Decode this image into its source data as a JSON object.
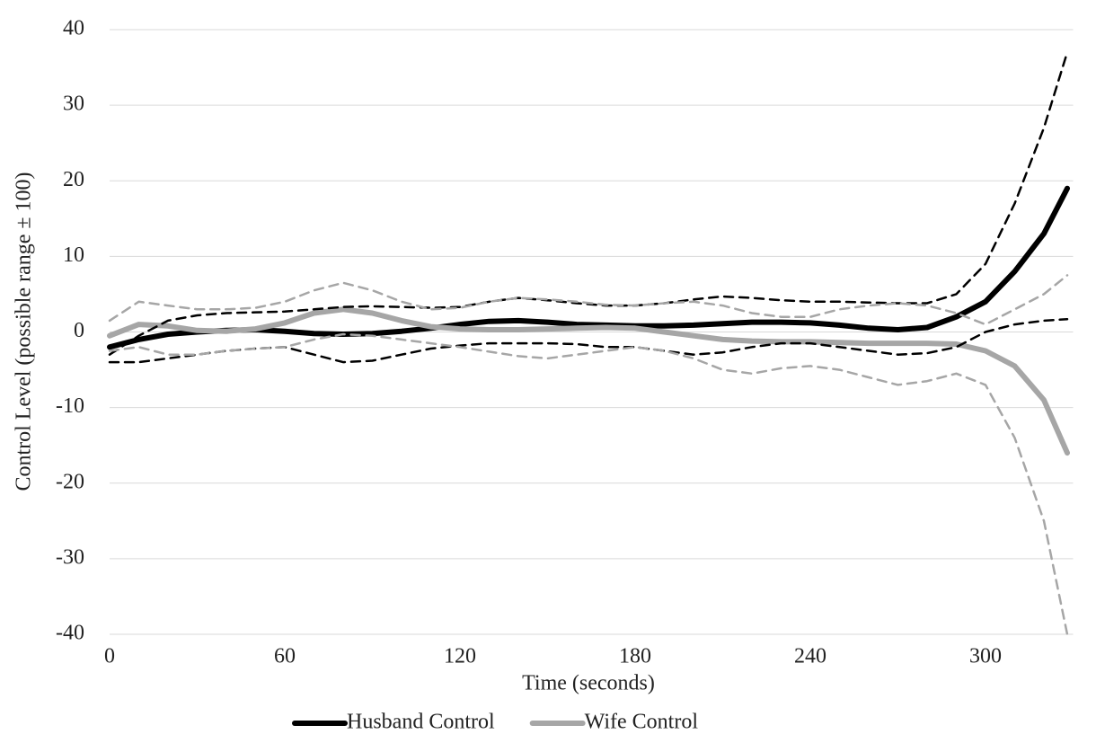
{
  "chart_data": {
    "type": "line",
    "xlabel": "Time (seconds)",
    "ylabel": "Control Level (possible range ± 100)",
    "x": [
      0,
      10,
      20,
      30,
      40,
      50,
      60,
      70,
      80,
      90,
      100,
      110,
      120,
      130,
      140,
      150,
      160,
      170,
      180,
      190,
      200,
      210,
      220,
      230,
      240,
      250,
      260,
      270,
      280,
      290,
      300,
      310,
      320,
      328
    ],
    "series": [
      {
        "name": "Husband Control",
        "color": "#000000",
        "style": "solid",
        "values": [
          -2,
          -1,
          -0.3,
          0,
          0.2,
          0.3,
          0.1,
          -0.2,
          -0.3,
          -0.2,
          0.1,
          0.5,
          1,
          1.4,
          1.5,
          1.3,
          1,
          0.9,
          0.8,
          0.8,
          0.9,
          1.1,
          1.3,
          1.3,
          1.2,
          0.9,
          0.5,
          0.3,
          0.6,
          2,
          4,
          8,
          13,
          19
        ]
      },
      {
        "name": "Wife Control",
        "color": "#a6a6a6",
        "style": "solid",
        "values": [
          -0.5,
          1,
          0.8,
          0.2,
          0.1,
          0.4,
          1.2,
          2.5,
          3,
          2.5,
          1.5,
          0.7,
          0.4,
          0.3,
          0.3,
          0.4,
          0.5,
          0.6,
          0.5,
          0,
          -0.5,
          -1,
          -1.2,
          -1.3,
          -1.3,
          -1.4,
          -1.5,
          -1.5,
          -1.5,
          -1.6,
          -2.5,
          -4.5,
          -9,
          -16
        ]
      },
      {
        "color": "#000000",
        "style": "dashed",
        "values": [
          -3,
          -0.5,
          1.5,
          2.2,
          2.5,
          2.6,
          2.7,
          3,
          3.3,
          3.4,
          3.3,
          3.2,
          3.3,
          4,
          4.5,
          4.2,
          3.8,
          3.5,
          3.5,
          3.8,
          4.3,
          4.7,
          4.5,
          4.2,
          4,
          4,
          3.9,
          3.8,
          3.8,
          5,
          9,
          17,
          27,
          37
        ]
      },
      {
        "color": "#000000",
        "style": "dashed",
        "values": [
          -4,
          -4,
          -3.5,
          -3,
          -2.5,
          -2.2,
          -2,
          -3,
          -4,
          -3.8,
          -3,
          -2.2,
          -1.8,
          -1.5,
          -1.5,
          -1.5,
          -1.6,
          -2,
          -2,
          -2.5,
          -3,
          -2.7,
          -2,
          -1.5,
          -1.5,
          -2,
          -2.5,
          -3,
          -2.8,
          -2,
          0,
          1,
          1.5,
          1.7
        ]
      },
      {
        "color": "#a6a6a6",
        "style": "dashed",
        "values": [
          1.5,
          4,
          3.5,
          3,
          3,
          3.2,
          4,
          5.5,
          6.5,
          5.5,
          4,
          3,
          3.2,
          4,
          4.5,
          4.3,
          4,
          3.6,
          3.5,
          3.8,
          4,
          3.5,
          2.5,
          2,
          2,
          3,
          3.5,
          3.8,
          3.5,
          2.5,
          1,
          3,
          5,
          7.5
        ]
      },
      {
        "color": "#a6a6a6",
        "style": "dashed",
        "values": [
          -2.5,
          -2,
          -3,
          -3,
          -2.5,
          -2.2,
          -2,
          -1,
          -0.3,
          -0.5,
          -1,
          -1.5,
          -2,
          -2.6,
          -3.2,
          -3.5,
          -3,
          -2.5,
          -2,
          -2.5,
          -3.5,
          -5,
          -5.5,
          -4.8,
          -4.5,
          -5,
          -6,
          -7,
          -6.5,
          -5.5,
          -7,
          -14,
          -25,
          -40
        ]
      }
    ],
    "xlim": [
      0,
      330
    ],
    "xticks": [
      0,
      60,
      120,
      180,
      240,
      300
    ],
    "ylim": [
      -40,
      40
    ],
    "yticks": [
      -40,
      -30,
      -20,
      -10,
      0,
      10,
      20,
      30,
      40
    ],
    "grid": true,
    "legend": "bottom"
  }
}
